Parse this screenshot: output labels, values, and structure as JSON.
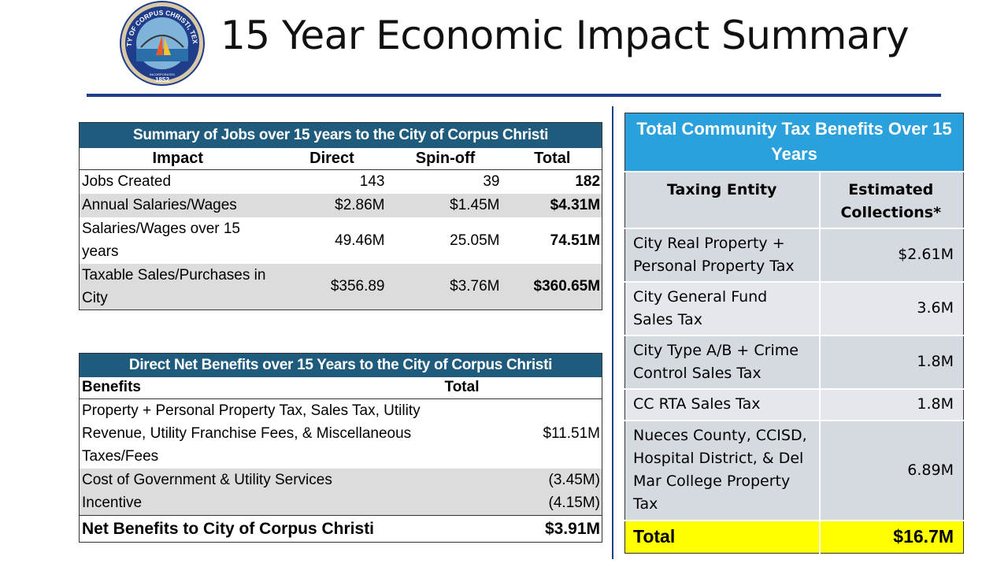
{
  "header": {
    "title": "15 Year Economic Impact Summary",
    "seal": {
      "text_top": "CITY OF CORPUS CHRISTI, TEXAS",
      "incorporated": "INCORPORATED",
      "year": "1852"
    }
  },
  "jobs_table": {
    "title": "Summary of Jobs over 15 years to the City of Corpus Christi",
    "columns": [
      "Impact",
      "Direct",
      "Spin-off",
      "Total"
    ],
    "rows": [
      {
        "impact": "Jobs Created",
        "direct": "143",
        "spinoff": "39",
        "total": "182"
      },
      {
        "impact": "Annual Salaries/Wages",
        "direct": "$2.86M",
        "spinoff": "$1.45M",
        "total": "$4.31M"
      },
      {
        "impact": "Salaries/Wages over 15 years",
        "direct": "49.46M",
        "spinoff": "25.05M",
        "total": "74.51M"
      },
      {
        "impact": "Taxable Sales/Purchases in City",
        "direct": "$356.89",
        "spinoff": "$3.76M",
        "total": "$360.65M"
      }
    ]
  },
  "benefits_table": {
    "title": "Direct Net Benefits over 15 Years to the City of Corpus Christi",
    "columns": [
      "Benefits",
      "Total"
    ],
    "rows": [
      {
        "benefit": "Property + Personal Property Tax, Sales Tax, Utility Revenue, Utility Franchise Fees, & Miscellaneous Taxes/Fees",
        "total": "$11.51M"
      },
      {
        "benefit": "Cost of Government & Utility Services",
        "total": "(3.45M)"
      },
      {
        "benefit": "Incentive",
        "total": "(4.15M)"
      }
    ],
    "net": {
      "label": "Net Benefits to City of Corpus Christi",
      "total": "$3.91M"
    }
  },
  "tax_table": {
    "title": "Total Community Tax Benefits Over 15 Years",
    "columns": [
      "Taxing Entity",
      "Estimated Collections*"
    ],
    "rows": [
      {
        "entity": "City Real Property + Personal Property Tax",
        "value": "$2.61M"
      },
      {
        "entity": "City General Fund Sales Tax",
        "value": "3.6M"
      },
      {
        "entity": "City Type A/B + Crime Control Sales Tax",
        "value": "1.8M"
      },
      {
        "entity": "CC RTA Sales Tax",
        "value": "1.8M"
      },
      {
        "entity": "Nueces County, CCISD, Hospital District, & Del Mar College Property Tax",
        "value": "6.89M"
      }
    ],
    "total": {
      "label": "Total",
      "value": "$16.7M"
    }
  },
  "colors": {
    "navy_rule": "#1f3d8a",
    "table_band": "#1f5b7c",
    "tax_band": "#2aa0dc",
    "total_highlight": "#ffff00",
    "row_shade": "#dcdcdc"
  }
}
